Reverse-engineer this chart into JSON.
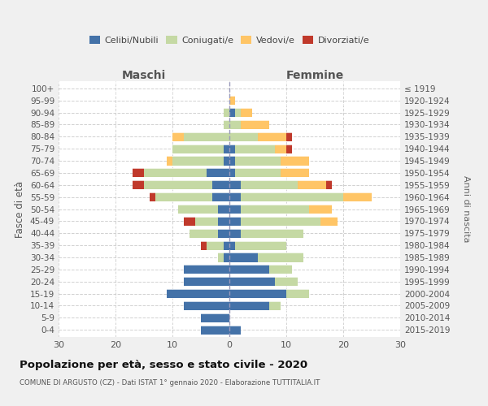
{
  "age_groups": [
    "0-4",
    "5-9",
    "10-14",
    "15-19",
    "20-24",
    "25-29",
    "30-34",
    "35-39",
    "40-44",
    "45-49",
    "50-54",
    "55-59",
    "60-64",
    "65-69",
    "70-74",
    "75-79",
    "80-84",
    "85-89",
    "90-94",
    "95-99",
    "100+"
  ],
  "birth_years": [
    "2015-2019",
    "2010-2014",
    "2005-2009",
    "2000-2004",
    "1995-1999",
    "1990-1994",
    "1985-1989",
    "1980-1984",
    "1975-1979",
    "1970-1974",
    "1965-1969",
    "1960-1964",
    "1955-1959",
    "1950-1954",
    "1945-1949",
    "1940-1944",
    "1935-1939",
    "1930-1934",
    "1925-1929",
    "1920-1924",
    "≤ 1919"
  ],
  "maschi": {
    "celibi": [
      5,
      5,
      8,
      11,
      8,
      8,
      1,
      1,
      2,
      2,
      2,
      3,
      3,
      4,
      1,
      1,
      0,
      0,
      0,
      0,
      0
    ],
    "coniugati": [
      0,
      0,
      0,
      0,
      0,
      0,
      1,
      3,
      5,
      4,
      7,
      10,
      12,
      11,
      9,
      9,
      8,
      1,
      1,
      0,
      0
    ],
    "vedovi": [
      0,
      0,
      0,
      0,
      0,
      0,
      0,
      0,
      0,
      0,
      0,
      0,
      0,
      0,
      1,
      0,
      2,
      0,
      0,
      0,
      0
    ],
    "divorziati": [
      0,
      0,
      0,
      0,
      0,
      0,
      0,
      1,
      0,
      2,
      0,
      1,
      2,
      2,
      0,
      0,
      0,
      0,
      0,
      0,
      0
    ]
  },
  "femmine": {
    "nubili": [
      2,
      0,
      7,
      10,
      8,
      7,
      5,
      1,
      2,
      2,
      2,
      2,
      2,
      1,
      1,
      1,
      0,
      0,
      1,
      0,
      0
    ],
    "coniugate": [
      0,
      0,
      2,
      4,
      4,
      4,
      8,
      9,
      11,
      14,
      12,
      18,
      10,
      8,
      8,
      7,
      5,
      2,
      1,
      0,
      0
    ],
    "vedove": [
      0,
      0,
      0,
      0,
      0,
      0,
      0,
      0,
      0,
      3,
      4,
      5,
      5,
      5,
      5,
      2,
      5,
      5,
      2,
      1,
      0
    ],
    "divorziate": [
      0,
      0,
      0,
      0,
      0,
      0,
      0,
      0,
      0,
      0,
      0,
      0,
      1,
      0,
      0,
      1,
      1,
      0,
      0,
      0,
      0
    ]
  },
  "colors": {
    "celibi": "#4472a8",
    "coniugati": "#c5d9a4",
    "vedovi": "#ffc566",
    "divorziati": "#c0392b"
  },
  "xlim": 30,
  "title": "Popolazione per età, sesso e stato civile - 2020",
  "subtitle": "COMUNE DI ARGUSTO (CZ) - Dati ISTAT 1° gennaio 2020 - Elaborazione TUTTITALIA.IT",
  "ylabel": "Fasce di età",
  "ylabel2": "Anni di nascita",
  "xlabel_maschi": "Maschi",
  "xlabel_femmine": "Femmine",
  "bg_color": "#f0f0f0",
  "plot_bg": "#ffffff",
  "grid_color": "#cccccc"
}
